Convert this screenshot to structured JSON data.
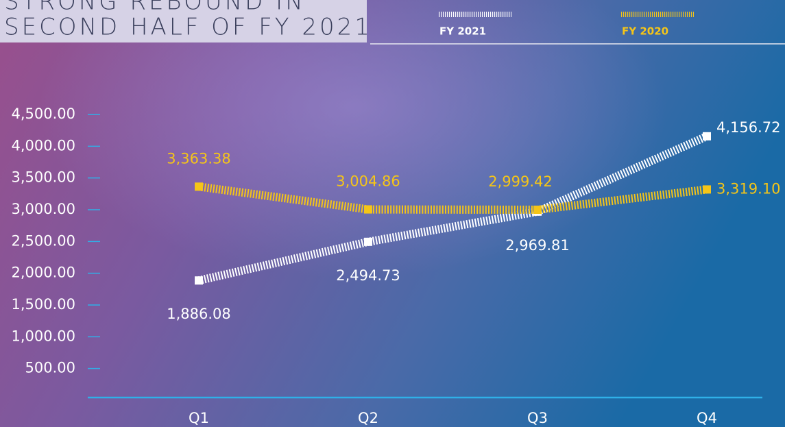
{
  "chart_data": {
    "type": "line",
    "title": [
      "STRONG REBOUND IN",
      "SECOND HALF OF FY 2021"
    ],
    "categories": [
      "Q1",
      "Q2",
      "Q3",
      "Q4"
    ],
    "series": [
      {
        "name": "FY 2021",
        "color": "#ffffff",
        "values": [
          1886.08,
          2494.73,
          2969.81,
          4156.72
        ],
        "value_labels": [
          "1,886.08",
          "2,494.73",
          "2,969.81",
          "4,156.72"
        ]
      },
      {
        "name": "FY 2020",
        "color": "#f5c518",
        "values": [
          3363.38,
          3004.86,
          2999.42,
          3319.1
        ],
        "value_labels": [
          "3,363.38",
          "3,004.86",
          "2,999.42",
          "3,319.10"
        ]
      }
    ],
    "ylim": [
      0,
      4500
    ],
    "yticks": [
      {
        "value": 500,
        "label": "500.00"
      },
      {
        "value": 1000,
        "label": "1,000.00"
      },
      {
        "value": 1500,
        "label": "1,500.00"
      },
      {
        "value": 2000,
        "label": "2,000.00"
      },
      {
        "value": 2500,
        "label": "2,500.00"
      },
      {
        "value": 3000,
        "label": "3,000.00"
      },
      {
        "value": 3500,
        "label": "3,500.00"
      },
      {
        "value": 4000,
        "label": "4,000.00"
      },
      {
        "value": 4500,
        "label": "4,500.00"
      }
    ]
  }
}
